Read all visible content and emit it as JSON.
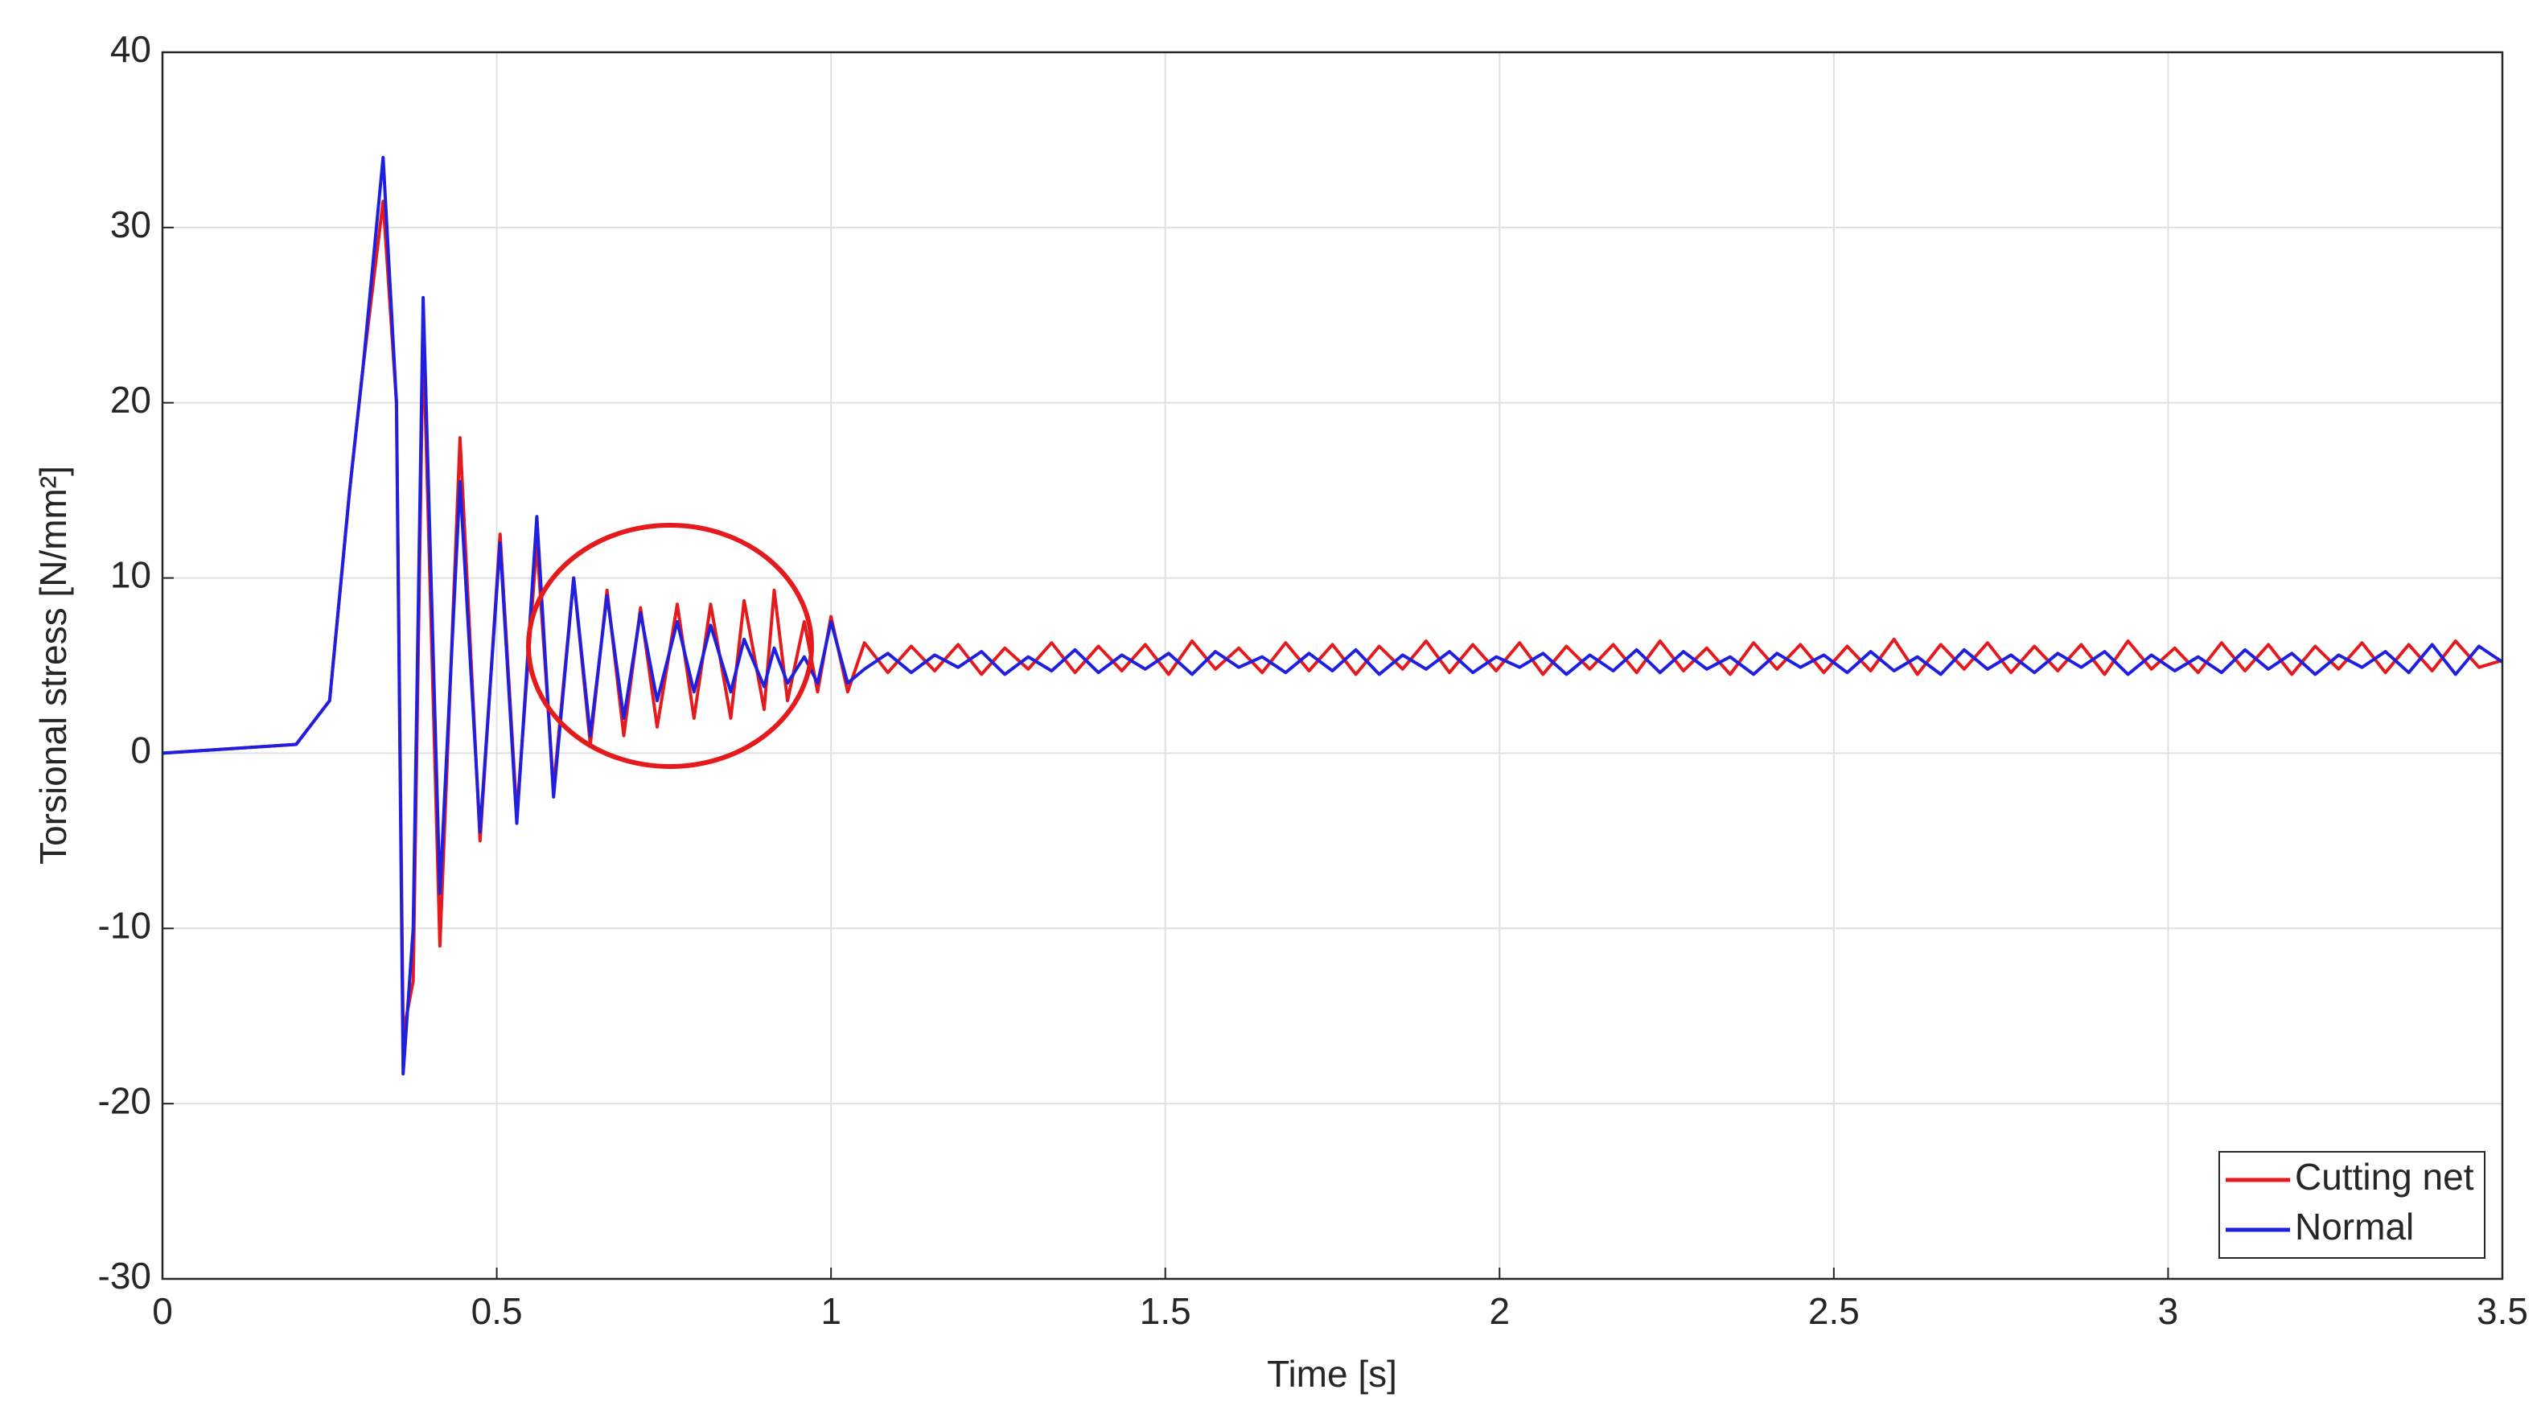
{
  "chart_data": {
    "type": "line",
    "x_label": "Time [s]",
    "y_label": "Torsional stress [N/mm²]",
    "xlim": [
      0,
      3.5
    ],
    "xticks": [
      0,
      0.5,
      1,
      1.5,
      2,
      2.5,
      3,
      3.5
    ],
    "ylim": [
      -30,
      40
    ],
    "yticks": [
      -30,
      -20,
      -10,
      0,
      10,
      20,
      30,
      40
    ],
    "grid": true,
    "legend": "lower right",
    "x": [
      0,
      0.2,
      0.25,
      0.28,
      0.3,
      0.33,
      0.35,
      0.36,
      0.375,
      0.39,
      0.415,
      0.445,
      0.475,
      0.505,
      0.53,
      0.56,
      0.585,
      0.615,
      0.64,
      0.665,
      0.69,
      0.715,
      0.74,
      0.77,
      0.795,
      0.82,
      0.85,
      0.87,
      0.9,
      0.915,
      0.935,
      0.96,
      0.98,
      1.0,
      1.025,
      1.05,
      1.085,
      1.12,
      1.155,
      1.19,
      1.225,
      1.26,
      1.295,
      1.33,
      1.365,
      1.4,
      1.435,
      1.47,
      1.505,
      1.54,
      1.575,
      1.61,
      1.645,
      1.68,
      1.715,
      1.75,
      1.785,
      1.82,
      1.855,
      1.89,
      1.925,
      1.96,
      1.995,
      2.03,
      2.065,
      2.1,
      2.135,
      2.17,
      2.205,
      2.24,
      2.275,
      2.31,
      2.345,
      2.38,
      2.415,
      2.45,
      2.485,
      2.52,
      2.555,
      2.59,
      2.625,
      2.66,
      2.695,
      2.73,
      2.765,
      2.8,
      2.835,
      2.87,
      2.905,
      2.94,
      2.975,
      3.01,
      3.045,
      3.08,
      3.115,
      3.15,
      3.185,
      3.22,
      3.255,
      3.29,
      3.325,
      3.36,
      3.395,
      3.43,
      3.465,
      3.5
    ],
    "series": [
      {
        "name": "Cutting net",
        "color": "#e41a1c",
        "values": [
          0,
          0.5,
          3,
          15,
          22,
          31.5,
          20,
          -16,
          -13,
          24,
          -11,
          18,
          -5,
          12.5,
          -3.5,
          12,
          -2,
          10,
          0.5,
          9.3,
          1,
          8.3,
          1.5,
          8.5,
          2,
          8.5,
          2,
          8.7,
          2.5,
          9.3,
          3,
          7.5,
          3.5,
          7.8,
          3.5,
          6.3,
          4.6,
          6.1,
          4.7,
          6.2,
          4.5,
          6.0,
          4.8,
          6.3,
          4.6,
          6.1,
          4.7,
          6.2,
          4.5,
          6.4,
          4.8,
          6.0,
          4.6,
          6.3,
          4.7,
          6.2,
          4.5,
          6.1,
          4.8,
          6.4,
          4.6,
          6.2,
          4.7,
          6.3,
          4.5,
          6.1,
          4.8,
          6.2,
          4.6,
          6.4,
          4.7,
          6.0,
          4.5,
          6.3,
          4.8,
          6.2,
          4.6,
          6.1,
          4.7,
          6.5,
          4.5,
          6.2,
          4.8,
          6.3,
          4.6,
          6.1,
          4.7,
          6.2,
          4.5,
          6.4,
          4.8,
          6.0,
          4.6,
          6.3,
          4.7,
          6.2,
          4.5,
          6.1,
          4.8,
          6.3,
          4.6,
          6.2,
          4.7,
          6.4,
          4.9,
          5.3
        ]
      },
      {
        "name": "Normal",
        "color": "#1f1fe0",
        "values": [
          0,
          0.5,
          3,
          15,
          22,
          34,
          20,
          -18.3,
          -10,
          26,
          -8,
          15.5,
          -4.5,
          12,
          -4,
          13.5,
          -2.5,
          10,
          1,
          9,
          2,
          8,
          3,
          7.5,
          3.5,
          7.3,
          3.5,
          6.5,
          3.8,
          6,
          4,
          5.5,
          4,
          7.5,
          4,
          4.8,
          5.7,
          4.6,
          5.6,
          4.9,
          5.8,
          4.5,
          5.5,
          4.7,
          5.9,
          4.6,
          5.6,
          4.8,
          5.7,
          4.5,
          5.8,
          4.9,
          5.5,
          4.6,
          5.7,
          4.7,
          5.9,
          4.5,
          5.6,
          4.8,
          5.8,
          4.6,
          5.5,
          4.9,
          5.7,
          4.5,
          5.6,
          4.7,
          5.9,
          4.6,
          5.8,
          4.8,
          5.5,
          4.5,
          5.7,
          4.9,
          5.6,
          4.6,
          5.8,
          4.7,
          5.5,
          4.5,
          5.9,
          4.8,
          5.6,
          4.6,
          5.7,
          4.9,
          5.8,
          4.5,
          5.6,
          4.7,
          5.5,
          4.6,
          5.9,
          4.8,
          5.7,
          4.5,
          5.6,
          4.9,
          5.8,
          4.6,
          6.2,
          4.5,
          6.1,
          5.2
        ]
      }
    ]
  }
}
